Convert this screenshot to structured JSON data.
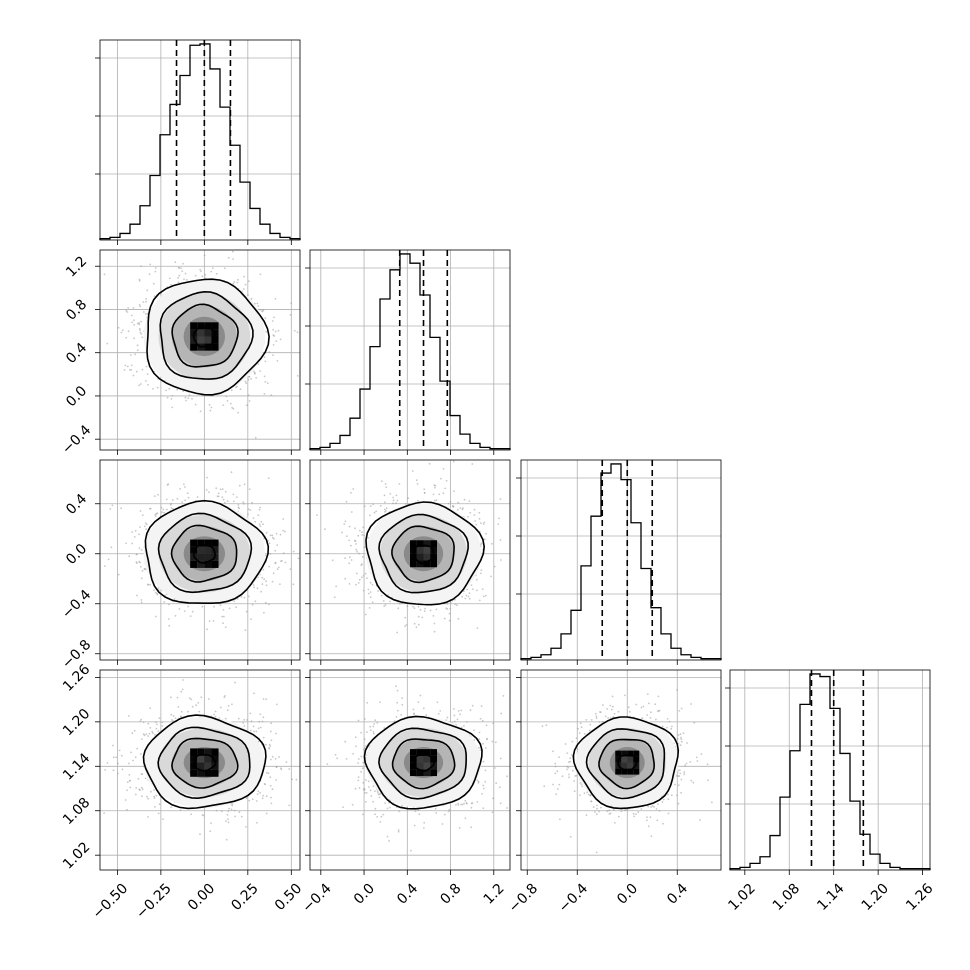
{
  "chart_data": {
    "type": "corner",
    "grid": true,
    "n_params": 4,
    "params": [
      {
        "ticks": [
          -0.5,
          -0.25,
          0.0,
          0.25,
          0.5
        ],
        "tick_labels": [
          "−0.50",
          "−0.25",
          "0.00",
          "0.25",
          "0.50"
        ],
        "range": [
          -0.6,
          0.55
        ],
        "quantiles": [
          -0.16,
          0.0,
          0.15
        ]
      },
      {
        "ticks": [
          -0.4,
          0.0,
          0.4,
          0.8,
          1.2
        ],
        "tick_labels": [
          "−0.4",
          "0.0",
          "0.4",
          "0.8",
          "1.2"
        ],
        "range": [
          -0.5,
          1.35
        ],
        "quantiles": [
          0.33,
          0.55,
          0.77
        ]
      },
      {
        "ticks": [
          -0.8,
          -0.4,
          0.0,
          0.4
        ],
        "tick_labels": [
          "−0.8",
          "−0.4",
          "0.0",
          "0.4"
        ],
        "range": [
          -0.85,
          0.75
        ],
        "quantiles": [
          -0.2,
          0.0,
          0.2
        ]
      },
      {
        "ticks": [
          1.02,
          1.08,
          1.14,
          1.2,
          1.26
        ],
        "tick_labels": [
          "1.02",
          "1.08",
          "1.14",
          "1.20",
          "1.26"
        ],
        "range": [
          1.0,
          1.27
        ],
        "quantiles": [
          1.11,
          1.14,
          1.18
        ]
      }
    ],
    "marginals": [
      {
        "counts": [
          1,
          2,
          5,
          12,
          26,
          49,
          80,
          103,
          125,
          148,
          149,
          130,
          101,
          72,
          44,
          24,
          12,
          5,
          2,
          1
        ]
      },
      {
        "counts": [
          1,
          2,
          5,
          11,
          24,
          46,
          78,
          114,
          136,
          148,
          141,
          117,
          85,
          52,
          26,
          12,
          5,
          2,
          1,
          1
        ]
      },
      {
        "counts": [
          1,
          2,
          4,
          9,
          20,
          38,
          72,
          110,
          143,
          150,
          138,
          105,
          70,
          40,
          20,
          9,
          4,
          2,
          1,
          1
        ]
      },
      {
        "counts": [
          1,
          2,
          5,
          10,
          26,
          55,
          90,
          125,
          148,
          146,
          122,
          88,
          52,
          27,
          12,
          5,
          2,
          1,
          1,
          1
        ]
      }
    ],
    "joint_std": [
      0.17,
      0.26,
      0.2,
      0.03
    ],
    "joint_means": [
      0.0,
      0.55,
      0.0,
      1.145
    ]
  }
}
